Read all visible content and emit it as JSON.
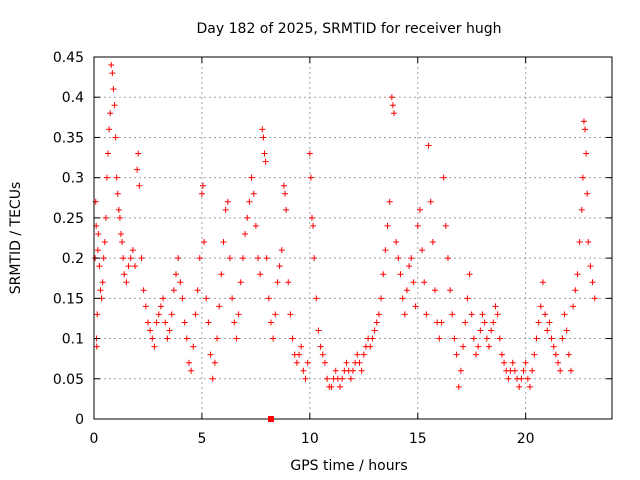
{
  "chart_data": {
    "type": "scatter",
    "title": "Day 182 of 2025, SRMTID for receiver hugh",
    "xlabel": "GPS time / hours",
    "ylabel": "SRMTID / TECUs",
    "xlim": [
      0,
      24
    ],
    "ylim": [
      0,
      0.45
    ],
    "xticks": [
      0,
      5,
      10,
      15,
      20
    ],
    "yticks": [
      0,
      0.05,
      0.1,
      0.15,
      0.2,
      0.25,
      0.3,
      0.35,
      0.4,
      0.45
    ],
    "xtick_labels": [
      "0",
      "5",
      "10",
      "15",
      "20"
    ],
    "ytick_labels": [
      "0",
      "0.05",
      "0.1",
      "0.15",
      "0.2",
      "0.25",
      "0.3",
      "0.35",
      "0.4",
      "0.45"
    ],
    "grid": true,
    "marker": "plus",
    "color": "#ff0000",
    "special_marker": {
      "x": 8.2,
      "y": 0.0,
      "shape": "square"
    },
    "series": [
      {
        "name": "SRMTID",
        "points": [
          [
            0.05,
            0.2
          ],
          [
            0.08,
            0.27
          ],
          [
            0.1,
            0.24
          ],
          [
            0.12,
            0.1
          ],
          [
            0.13,
            0.09
          ],
          [
            0.15,
            0.13
          ],
          [
            0.18,
            0.21
          ],
          [
            0.2,
            0.23
          ],
          [
            0.25,
            0.19
          ],
          [
            0.3,
            0.16
          ],
          [
            0.35,
            0.15
          ],
          [
            0.4,
            0.17
          ],
          [
            0.45,
            0.2
          ],
          [
            0.5,
            0.22
          ],
          [
            0.55,
            0.25
          ],
          [
            0.6,
            0.3
          ],
          [
            0.65,
            0.33
          ],
          [
            0.7,
            0.36
          ],
          [
            0.75,
            0.38
          ],
          [
            0.8,
            0.44
          ],
          [
            0.85,
            0.43
          ],
          [
            0.9,
            0.41
          ],
          [
            0.95,
            0.39
          ],
          [
            1.0,
            0.35
          ],
          [
            1.05,
            0.3
          ],
          [
            1.1,
            0.28
          ],
          [
            1.15,
            0.26
          ],
          [
            1.2,
            0.25
          ],
          [
            1.25,
            0.23
          ],
          [
            1.3,
            0.22
          ],
          [
            1.35,
            0.2
          ],
          [
            1.4,
            0.18
          ],
          [
            1.5,
            0.17
          ],
          [
            1.6,
            0.19
          ],
          [
            1.7,
            0.2
          ],
          [
            1.8,
            0.21
          ],
          [
            1.9,
            0.19
          ],
          [
            2.0,
            0.31
          ],
          [
            2.05,
            0.33
          ],
          [
            2.1,
            0.29
          ],
          [
            2.2,
            0.2
          ],
          [
            2.3,
            0.16
          ],
          [
            2.4,
            0.14
          ],
          [
            2.5,
            0.12
          ],
          [
            2.6,
            0.11
          ],
          [
            2.7,
            0.1
          ],
          [
            2.8,
            0.09
          ],
          [
            2.9,
            0.12
          ],
          [
            3.0,
            0.13
          ],
          [
            3.1,
            0.14
          ],
          [
            3.2,
            0.15
          ],
          [
            3.3,
            0.12
          ],
          [
            3.4,
            0.1
          ],
          [
            3.5,
            0.11
          ],
          [
            3.6,
            0.13
          ],
          [
            3.7,
            0.16
          ],
          [
            3.8,
            0.18
          ],
          [
            3.9,
            0.2
          ],
          [
            4.0,
            0.17
          ],
          [
            4.1,
            0.15
          ],
          [
            4.2,
            0.12
          ],
          [
            4.3,
            0.1
          ],
          [
            4.4,
            0.07
          ],
          [
            4.5,
            0.06
          ],
          [
            4.6,
            0.09
          ],
          [
            4.7,
            0.13
          ],
          [
            4.8,
            0.16
          ],
          [
            4.9,
            0.2
          ],
          [
            5.0,
            0.28
          ],
          [
            5.05,
            0.29
          ],
          [
            5.1,
            0.22
          ],
          [
            5.2,
            0.15
          ],
          [
            5.3,
            0.12
          ],
          [
            5.4,
            0.08
          ],
          [
            5.5,
            0.05
          ],
          [
            5.6,
            0.07
          ],
          [
            5.7,
            0.1
          ],
          [
            5.8,
            0.14
          ],
          [
            5.9,
            0.18
          ],
          [
            6.0,
            0.22
          ],
          [
            6.1,
            0.26
          ],
          [
            6.2,
            0.27
          ],
          [
            6.3,
            0.2
          ],
          [
            6.4,
            0.15
          ],
          [
            6.5,
            0.12
          ],
          [
            6.6,
            0.1
          ],
          [
            6.7,
            0.13
          ],
          [
            6.8,
            0.17
          ],
          [
            6.9,
            0.2
          ],
          [
            7.0,
            0.23
          ],
          [
            7.1,
            0.25
          ],
          [
            7.2,
            0.27
          ],
          [
            7.3,
            0.3
          ],
          [
            7.4,
            0.28
          ],
          [
            7.5,
            0.24
          ],
          [
            7.6,
            0.2
          ],
          [
            7.7,
            0.18
          ],
          [
            7.8,
            0.36
          ],
          [
            7.85,
            0.35
          ],
          [
            7.9,
            0.33
          ],
          [
            7.95,
            0.32
          ],
          [
            8.0,
            0.2
          ],
          [
            8.1,
            0.15
          ],
          [
            8.2,
            0.12
          ],
          [
            8.3,
            0.1
          ],
          [
            8.4,
            0.13
          ],
          [
            8.5,
            0.17
          ],
          [
            8.6,
            0.19
          ],
          [
            8.7,
            0.21
          ],
          [
            8.8,
            0.29
          ],
          [
            8.85,
            0.28
          ],
          [
            8.9,
            0.26
          ],
          [
            9.0,
            0.17
          ],
          [
            9.1,
            0.13
          ],
          [
            9.2,
            0.1
          ],
          [
            9.3,
            0.08
          ],
          [
            9.4,
            0.07
          ],
          [
            9.5,
            0.08
          ],
          [
            9.6,
            0.09
          ],
          [
            9.7,
            0.06
          ],
          [
            9.8,
            0.05
          ],
          [
            9.9,
            0.07
          ],
          [
            10.0,
            0.33
          ],
          [
            10.05,
            0.3
          ],
          [
            10.1,
            0.25
          ],
          [
            10.15,
            0.24
          ],
          [
            10.2,
            0.2
          ],
          [
            10.3,
            0.15
          ],
          [
            10.4,
            0.11
          ],
          [
            10.5,
            0.09
          ],
          [
            10.6,
            0.08
          ],
          [
            10.7,
            0.07
          ],
          [
            10.8,
            0.05
          ],
          [
            10.9,
            0.04
          ],
          [
            11.0,
            0.04
          ],
          [
            11.1,
            0.05
          ],
          [
            11.2,
            0.06
          ],
          [
            11.3,
            0.05
          ],
          [
            11.4,
            0.04
          ],
          [
            11.5,
            0.05
          ],
          [
            11.6,
            0.06
          ],
          [
            11.7,
            0.07
          ],
          [
            11.8,
            0.06
          ],
          [
            11.9,
            0.05
          ],
          [
            12.0,
            0.06
          ],
          [
            12.1,
            0.07
          ],
          [
            12.2,
            0.08
          ],
          [
            12.3,
            0.07
          ],
          [
            12.4,
            0.06
          ],
          [
            12.5,
            0.08
          ],
          [
            12.6,
            0.09
          ],
          [
            12.7,
            0.1
          ],
          [
            12.8,
            0.09
          ],
          [
            12.9,
            0.1
          ],
          [
            13.0,
            0.11
          ],
          [
            13.1,
            0.12
          ],
          [
            13.2,
            0.13
          ],
          [
            13.3,
            0.15
          ],
          [
            13.4,
            0.18
          ],
          [
            13.5,
            0.21
          ],
          [
            13.6,
            0.24
          ],
          [
            13.7,
            0.27
          ],
          [
            13.8,
            0.4
          ],
          [
            13.85,
            0.39
          ],
          [
            13.9,
            0.38
          ],
          [
            14.0,
            0.22
          ],
          [
            14.1,
            0.2
          ],
          [
            14.2,
            0.18
          ],
          [
            14.3,
            0.15
          ],
          [
            14.4,
            0.13
          ],
          [
            14.5,
            0.16
          ],
          [
            14.6,
            0.19
          ],
          [
            14.7,
            0.2
          ],
          [
            14.8,
            0.17
          ],
          [
            14.9,
            0.14
          ],
          [
            15.0,
            0.24
          ],
          [
            15.1,
            0.26
          ],
          [
            15.2,
            0.21
          ],
          [
            15.3,
            0.17
          ],
          [
            15.4,
            0.13
          ],
          [
            15.5,
            0.34
          ],
          [
            15.6,
            0.27
          ],
          [
            15.7,
            0.22
          ],
          [
            15.8,
            0.16
          ],
          [
            15.9,
            0.12
          ],
          [
            16.0,
            0.1
          ],
          [
            16.1,
            0.12
          ],
          [
            16.2,
            0.3
          ],
          [
            16.3,
            0.24
          ],
          [
            16.4,
            0.2
          ],
          [
            16.5,
            0.16
          ],
          [
            16.6,
            0.13
          ],
          [
            16.7,
            0.1
          ],
          [
            16.8,
            0.08
          ],
          [
            16.9,
            0.04
          ],
          [
            17.0,
            0.06
          ],
          [
            17.1,
            0.09
          ],
          [
            17.2,
            0.12
          ],
          [
            17.3,
            0.15
          ],
          [
            17.4,
            0.18
          ],
          [
            17.5,
            0.13
          ],
          [
            17.6,
            0.1
          ],
          [
            17.7,
            0.08
          ],
          [
            17.8,
            0.09
          ],
          [
            17.9,
            0.11
          ],
          [
            18.0,
            0.13
          ],
          [
            18.1,
            0.12
          ],
          [
            18.2,
            0.1
          ],
          [
            18.3,
            0.09
          ],
          [
            18.4,
            0.11
          ],
          [
            18.5,
            0.12
          ],
          [
            18.6,
            0.14
          ],
          [
            18.7,
            0.13
          ],
          [
            18.8,
            0.1
          ],
          [
            18.9,
            0.08
          ],
          [
            19.0,
            0.07
          ],
          [
            19.1,
            0.06
          ],
          [
            19.2,
            0.05
          ],
          [
            19.3,
            0.06
          ],
          [
            19.4,
            0.07
          ],
          [
            19.5,
            0.06
          ],
          [
            19.6,
            0.05
          ],
          [
            19.7,
            0.04
          ],
          [
            19.8,
            0.05
          ],
          [
            19.9,
            0.06
          ],
          [
            20.0,
            0.07
          ],
          [
            20.1,
            0.05
          ],
          [
            20.2,
            0.04
          ],
          [
            20.3,
            0.06
          ],
          [
            20.4,
            0.08
          ],
          [
            20.5,
            0.1
          ],
          [
            20.6,
            0.12
          ],
          [
            20.7,
            0.14
          ],
          [
            20.8,
            0.17
          ],
          [
            20.9,
            0.13
          ],
          [
            21.0,
            0.11
          ],
          [
            21.1,
            0.12
          ],
          [
            21.2,
            0.1
          ],
          [
            21.3,
            0.09
          ],
          [
            21.4,
            0.08
          ],
          [
            21.5,
            0.07
          ],
          [
            21.6,
            0.06
          ],
          [
            21.7,
            0.1
          ],
          [
            21.8,
            0.13
          ],
          [
            21.9,
            0.11
          ],
          [
            22.0,
            0.08
          ],
          [
            22.1,
            0.06
          ],
          [
            22.2,
            0.14
          ],
          [
            22.3,
            0.16
          ],
          [
            22.4,
            0.18
          ],
          [
            22.5,
            0.22
          ],
          [
            22.6,
            0.26
          ],
          [
            22.65,
            0.3
          ],
          [
            22.7,
            0.37
          ],
          [
            22.75,
            0.36
          ],
          [
            22.8,
            0.33
          ],
          [
            22.85,
            0.28
          ],
          [
            22.9,
            0.22
          ],
          [
            23.0,
            0.19
          ],
          [
            23.1,
            0.17
          ],
          [
            23.2,
            0.15
          ]
        ]
      }
    ]
  }
}
